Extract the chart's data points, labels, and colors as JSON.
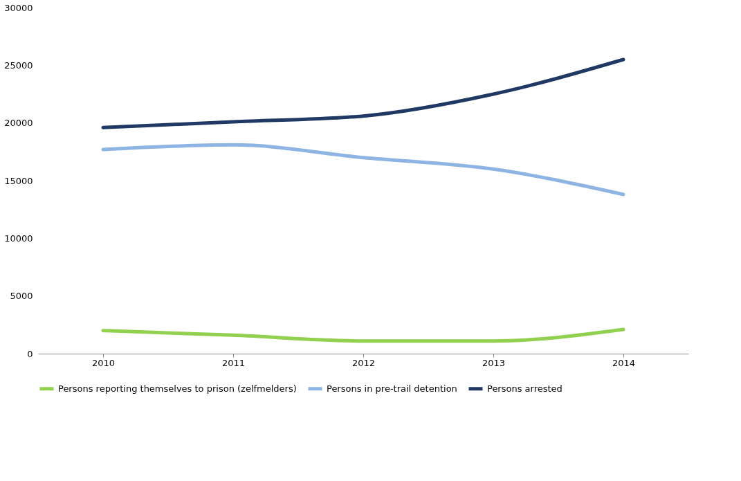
{
  "chart_data": {
    "type": "line",
    "categories": [
      "2010",
      "2011",
      "2012",
      "2013",
      "2014"
    ],
    "series": [
      {
        "name": "Persons reporting themselves to prison (zelfmelders)",
        "color": "#92d050",
        "values": [
          2000,
          1600,
          1100,
          1100,
          2100
        ]
      },
      {
        "name": "Persons in pre-trail detention",
        "color": "#8db4e2",
        "values": [
          17700,
          18100,
          17000,
          16000,
          13800
        ]
      },
      {
        "name": "Persons arrested",
        "color": "#1f3864",
        "values": [
          19600,
          20100,
          20600,
          22500,
          25500
        ]
      }
    ],
    "ylim": [
      0,
      30000
    ],
    "yticks": [
      0,
      5000,
      10000,
      15000,
      20000,
      25000,
      30000
    ],
    "grid": false,
    "legend": "bottom",
    "marker": "none",
    "line_style": "solid"
  }
}
